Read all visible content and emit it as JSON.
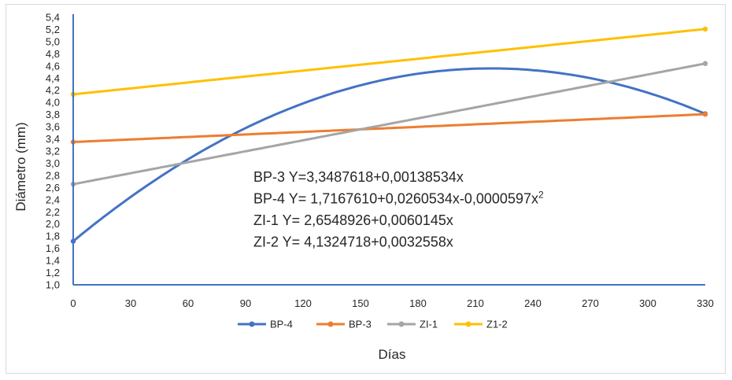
{
  "chart_data": {
    "type": "line",
    "title": "",
    "xlabel": "Días",
    "ylabel": "Diámetro (mm)",
    "xlim": [
      0,
      330
    ],
    "ylim": [
      1.0,
      5.4
    ],
    "x_ticks": [
      "0",
      "30",
      "60",
      "90",
      "120",
      "150",
      "180",
      "210",
      "240",
      "270",
      "300",
      "330"
    ],
    "y_ticks": [
      "1,0",
      "1,2",
      "1,4",
      "1,6",
      "1,8",
      "2,0",
      "2,2",
      "2,4",
      "2,6",
      "2,8",
      "3,0",
      "3,2",
      "3,4",
      "3,6",
      "3,8",
      "4,0",
      "4,2",
      "4,4",
      "4,6",
      "4,8",
      "5,0",
      "5,2",
      "5,4"
    ],
    "grid": false,
    "legend_position": "bottom",
    "series": [
      {
        "name": "BP-4",
        "color": "#4472c4",
        "model": "quadratic",
        "coefficients": [
          1.716761,
          0.0260534,
          -5.97e-05
        ]
      },
      {
        "name": "BP-3",
        "color": "#ed7d31",
        "model": "linear",
        "coefficients": [
          3.3487618,
          0.00138534
        ]
      },
      {
        "name": "ZI-1",
        "color": "#a5a5a5",
        "model": "linear",
        "coefficients": [
          2.6548926,
          0.0060145
        ]
      },
      {
        "name": "Z1-2",
        "color": "#ffc000",
        "model": "linear",
        "coefficients": [
          4.1324718,
          0.0032558
        ]
      }
    ],
    "equations": [
      {
        "text": "BP-3  Y=3,3487618+0,00138534x",
        "sup": ""
      },
      {
        "text": "BP-4  Y= 1,7167610+0,0260534x-0,0000597x",
        "sup": "2"
      },
      {
        "text": "ZI-1  Y= 2,6548926+0,0060145x",
        "sup": ""
      },
      {
        "text": "ZI-2  Y= 4,1324718+0,0032558x",
        "sup": ""
      }
    ]
  }
}
